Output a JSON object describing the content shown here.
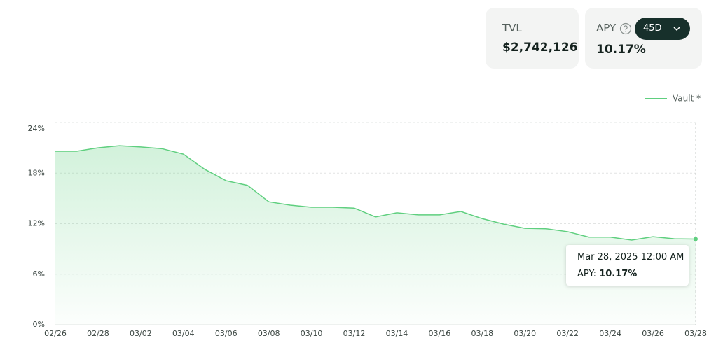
{
  "cards": {
    "tvl": {
      "label": "TVL",
      "value": "$2,742,126"
    },
    "apy": {
      "label": "APY",
      "value": "10.17%",
      "period": "45D"
    }
  },
  "chart_data": {
    "type": "line",
    "categories": [
      "02/26",
      null,
      "02/28",
      null,
      "03/02",
      null,
      "03/04",
      null,
      "03/06",
      null,
      "03/08",
      null,
      "03/10",
      null,
      "03/12",
      null,
      "03/14",
      null,
      "03/16",
      null,
      "03/18",
      null,
      "03/20",
      null,
      "03/22",
      null,
      "03/24",
      null,
      "03/26",
      null,
      "03/28"
    ],
    "series": [
      {
        "name": "Vault *",
        "color": "#5fcf7f",
        "values": [
          20.6,
          20.6,
          21.0,
          21.25,
          21.1,
          20.9,
          20.25,
          18.45,
          17.1,
          16.55,
          14.6,
          14.2,
          13.95,
          13.95,
          13.85,
          12.8,
          13.3,
          13.05,
          13.05,
          13.45,
          12.6,
          11.95,
          11.45,
          11.4,
          11.05,
          10.4,
          10.4,
          10.05,
          10.45,
          10.2,
          10.17
        ]
      }
    ],
    "ylim": [
      0,
      24
    ],
    "yticks": [
      {
        "value": 0,
        "label": "0%"
      },
      {
        "value": 6,
        "label": "6%"
      },
      {
        "value": 12,
        "label": "12%"
      },
      {
        "value": 18,
        "label": "18%"
      },
      {
        "value": 24,
        "label": "24%"
      }
    ],
    "grid": true,
    "legend": "top-right",
    "tooltip": {
      "date": "Mar 28, 2025 12:00 AM",
      "label": "APY:",
      "value_label": "10.17%"
    }
  }
}
